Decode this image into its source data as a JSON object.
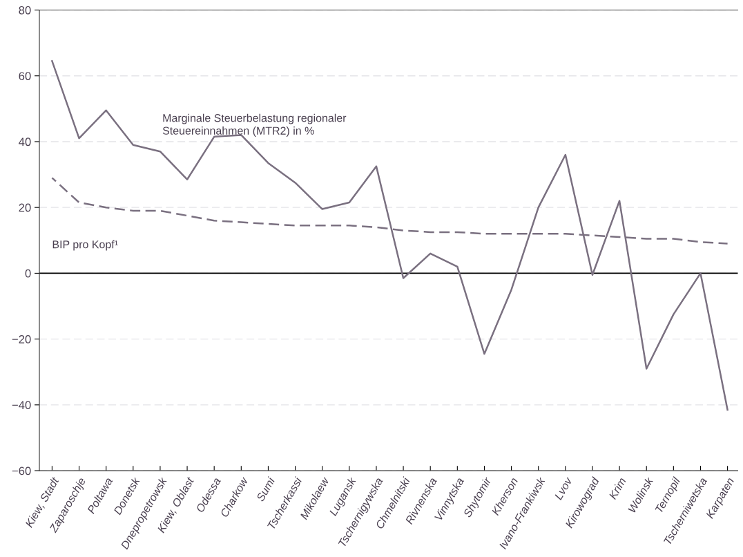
{
  "chart_data": {
    "type": "line",
    "categories": [
      "Kiew, Stadt",
      "Zaparoschje",
      "Poltawa",
      "Donetsk",
      "Dnepropetrowsk",
      "Kiew, Oblast",
      "Odessa",
      "Charkow",
      "Sumi",
      "Tscherkassi",
      "Mikolaew",
      "Lugansk",
      "Tschernigywska",
      "Chmelnitski",
      "Rivnenska",
      "Vinnytska",
      "Shytomir",
      "Kherson",
      "Ivano-Frankiwsk",
      "Lvov",
      "Kirowograd",
      "Krim",
      "Wolinsk",
      "Ternopil",
      "Tscherniwetska",
      "Karpaten"
    ],
    "series": [
      {
        "name": "Marginale Steuerbelastung regionaler\nSteuereinnahmen (MTR2) in %",
        "color": "#7a7080",
        "line_style": "solid",
        "values": [
          64.5,
          41,
          49.5,
          39,
          37,
          28.5,
          41.5,
          42,
          33.5,
          27.5,
          19.5,
          21.5,
          32.5,
          -1.5,
          6,
          2,
          -24.5,
          -5,
          20,
          36,
          -0.5,
          22,
          -29,
          -12.5,
          0,
          -41.5
        ]
      },
      {
        "name": "BIP pro Kopf¹",
        "color": "#7a7080",
        "line_style": "dashed",
        "values": [
          29,
          21.5,
          20,
          19,
          19,
          17.5,
          16,
          15.5,
          15,
          14.5,
          14.5,
          14.5,
          14,
          13,
          12.5,
          12.5,
          12,
          12,
          12,
          12,
          11.5,
          11,
          10.5,
          10.5,
          9.5,
          9
        ]
      }
    ],
    "ylim": [
      -60,
      80
    ],
    "yticks": [
      -60,
      -40,
      -20,
      0,
      20,
      40,
      60,
      80
    ],
    "grid": "y",
    "legend": false,
    "marker": "none",
    "ref_lines": [
      {
        "axis": "y",
        "value": 0,
        "color": "#000000"
      }
    ]
  }
}
